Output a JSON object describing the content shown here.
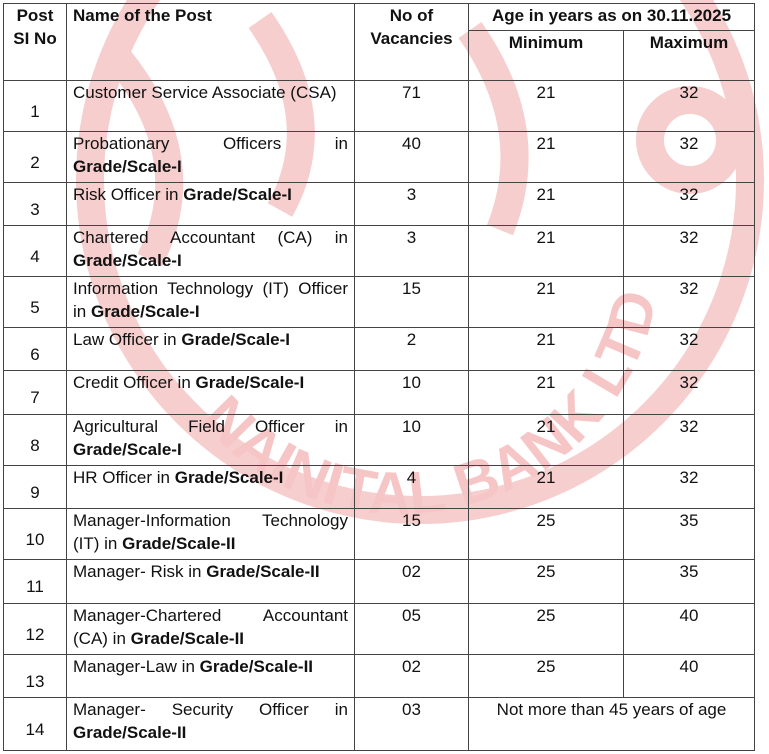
{
  "watermark": {
    "text": "NAINITAL BANK LTD",
    "color": "#f4bcbc"
  },
  "header": {
    "sl": "Post SI No",
    "name": "Name of the Post",
    "vacancies": "No of Vacancies",
    "age_group": "Age in years as on 30.11.2025",
    "min": "Minimum",
    "max": "Maximum"
  },
  "rows": [
    {
      "sl": "1",
      "name": "Customer Service Associate (CSA)",
      "bold": "",
      "vac": "71",
      "min": "21",
      "max": "32"
    },
    {
      "sl": "2",
      "name": "Probationary Officers in ",
      "bold": "Grade/Scale-I",
      "vac": "40",
      "min": "21",
      "max": "32"
    },
    {
      "sl": "3",
      "name": "Risk Officer in ",
      "bold": "Grade/Scale-I",
      "vac": "3",
      "min": "21",
      "max": "32"
    },
    {
      "sl": "4",
      "name": "Chartered Accountant (CA) in ",
      "bold": "Grade/Scale-I",
      "vac": "3",
      "min": "21",
      "max": "32"
    },
    {
      "sl": "5",
      "name": "Information Technology (IT) Officer in ",
      "bold": "Grade/Scale-I",
      "vac": "15",
      "min": "21",
      "max": "32"
    },
    {
      "sl": "6",
      "name": "Law Officer in ",
      "bold": "Grade/Scale-I",
      "vac": "2",
      "min": "21",
      "max": "32"
    },
    {
      "sl": "7",
      "name": "Credit Officer in ",
      "bold": "Grade/Scale-I",
      "vac": "10",
      "min": "21",
      "max": "32"
    },
    {
      "sl": "8",
      "name": "Agricultural Field Officer in ",
      "bold": "Grade/Scale-I",
      "vac": "10",
      "min": "21",
      "max": "32"
    },
    {
      "sl": "9",
      "name": "HR Officer in ",
      "bold": "Grade/Scale-I",
      "vac": "4",
      "min": "21",
      "max": "32"
    },
    {
      "sl": "10",
      "name": "Manager-Information Technology (IT) in ",
      "bold": "Grade/Scale-II",
      "vac": "15",
      "min": "25",
      "max": "35"
    },
    {
      "sl": "11",
      "name": "Manager- Risk in ",
      "bold": "Grade/Scale-II",
      "vac": "02",
      "min": "25",
      "max": "35"
    },
    {
      "sl": "12",
      "name": "Manager-Chartered Accountant (CA) in ",
      "bold": "Grade/Scale-II",
      "vac": "05",
      "min": "25",
      "max": "40"
    },
    {
      "sl": "13",
      "name": "Manager-Law in ",
      "bold": "Grade/Scale-II",
      "vac": "02",
      "min": "25",
      "max": "40"
    },
    {
      "sl": "14",
      "name": "Manager- Security Officer in ",
      "bold": "Grade/Scale-II",
      "vac": "03",
      "age_note": "Not more than 45 years of age"
    }
  ]
}
